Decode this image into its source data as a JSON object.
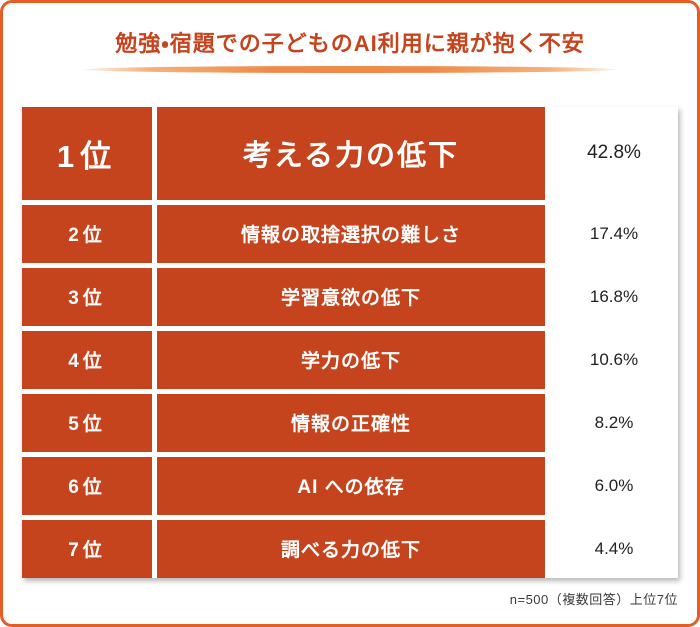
{
  "page": {
    "title": "勉強・宿題での子どものAI利用に親が抱く不安",
    "footnote": "n=500（複数回答）上位7位"
  },
  "colors": {
    "accent": "#c5441d",
    "border": "#e55d26",
    "underline": "#ef8a4a",
    "value_text": "#222222",
    "note_text": "#3a3a3a"
  },
  "chart_data": {
    "type": "table",
    "title": "勉強・宿題での子どものAI利用に親が抱く不安",
    "note": "n=500（複数回答）上位7位",
    "rows": [
      {
        "rank": "1位",
        "label": "考える力の低下",
        "value": "42.8%",
        "value_num": 42.8
      },
      {
        "rank": "2位",
        "label": "情報の取捨選択の難しさ",
        "value": "17.4%",
        "value_num": 17.4
      },
      {
        "rank": "3位",
        "label": "学習意欲の低下",
        "value": "16.8%",
        "value_num": 16.8
      },
      {
        "rank": "4位",
        "label": "学力の低下",
        "value": "10.6%",
        "value_num": 10.6
      },
      {
        "rank": "5位",
        "label": "情報の正確性",
        "value": "8.2%",
        "value_num": 8.2
      },
      {
        "rank": "6位",
        "label": "AI への依存",
        "value": "6.0%",
        "value_num": 6.0
      },
      {
        "rank": "7位",
        "label": "調べる力の低下",
        "value": "4.4%",
        "value_num": 4.4
      }
    ]
  }
}
